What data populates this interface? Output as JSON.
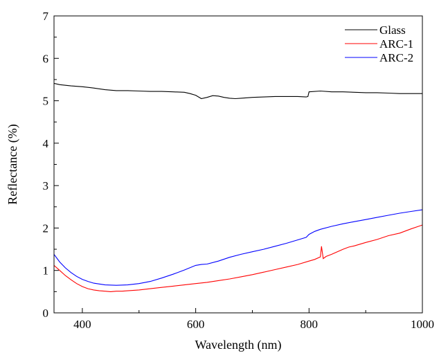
{
  "chart_data": {
    "type": "line",
    "title": "",
    "xlabel": "Wavelength (nm)",
    "ylabel": "Reflectance (%)",
    "xlim": [
      350,
      1000
    ],
    "ylim": [
      0,
      7
    ],
    "xticks": [
      400,
      600,
      800,
      1000
    ],
    "yticks": [
      0,
      1,
      2,
      3,
      4,
      5,
      6,
      7
    ],
    "grid": false,
    "legend_position": "top-right",
    "series": [
      {
        "name": "Glass",
        "color": "#000000",
        "x": [
          350,
          360,
          380,
          400,
          420,
          440,
          460,
          480,
          500,
          520,
          540,
          560,
          580,
          590,
          600,
          610,
          620,
          630,
          640,
          650,
          660,
          670,
          680,
          700,
          720,
          740,
          760,
          780,
          795,
          798,
          800,
          820,
          840,
          860,
          880,
          900,
          920,
          940,
          960,
          980,
          1000
        ],
        "y": [
          5.41,
          5.38,
          5.35,
          5.33,
          5.3,
          5.26,
          5.24,
          5.24,
          5.23,
          5.22,
          5.22,
          5.21,
          5.2,
          5.17,
          5.13,
          5.05,
          5.08,
          5.12,
          5.11,
          5.08,
          5.06,
          5.05,
          5.06,
          5.08,
          5.09,
          5.1,
          5.1,
          5.1,
          5.09,
          5.1,
          5.21,
          5.23,
          5.21,
          5.21,
          5.2,
          5.19,
          5.19,
          5.18,
          5.17,
          5.17,
          5.17
        ]
      },
      {
        "name": "ARC-1",
        "color": "#ff0000",
        "x": [
          350,
          360,
          370,
          380,
          390,
          400,
          410,
          420,
          430,
          440,
          450,
          460,
          470,
          480,
          500,
          520,
          540,
          560,
          580,
          600,
          620,
          640,
          660,
          680,
          700,
          720,
          740,
          760,
          780,
          800,
          810,
          820,
          822,
          825,
          830,
          840,
          850,
          860,
          870,
          880,
          900,
          920,
          940,
          960,
          980,
          1000
        ],
        "y": [
          1.12,
          1.0,
          0.88,
          0.78,
          0.69,
          0.62,
          0.57,
          0.54,
          0.52,
          0.51,
          0.5,
          0.51,
          0.51,
          0.52,
          0.54,
          0.57,
          0.6,
          0.63,
          0.66,
          0.69,
          0.72,
          0.76,
          0.8,
          0.85,
          0.9,
          0.96,
          1.02,
          1.08,
          1.14,
          1.22,
          1.26,
          1.32,
          1.57,
          1.28,
          1.33,
          1.38,
          1.44,
          1.5,
          1.55,
          1.58,
          1.66,
          1.73,
          1.82,
          1.88,
          1.98,
          2.07
        ]
      },
      {
        "name": "ARC-2",
        "color": "#0000ff",
        "x": [
          350,
          360,
          370,
          380,
          390,
          400,
          410,
          420,
          430,
          440,
          460,
          480,
          500,
          520,
          540,
          560,
          580,
          600,
          610,
          620,
          640,
          660,
          680,
          700,
          720,
          740,
          760,
          780,
          795,
          800,
          810,
          820,
          840,
          860,
          880,
          900,
          920,
          940,
          960,
          980,
          1000
        ],
        "y": [
          1.38,
          1.2,
          1.06,
          0.95,
          0.86,
          0.79,
          0.74,
          0.7,
          0.68,
          0.66,
          0.65,
          0.66,
          0.69,
          0.74,
          0.82,
          0.91,
          1.01,
          1.12,
          1.14,
          1.15,
          1.22,
          1.31,
          1.38,
          1.44,
          1.5,
          1.57,
          1.64,
          1.72,
          1.78,
          1.85,
          1.92,
          1.97,
          2.04,
          2.1,
          2.15,
          2.2,
          2.25,
          2.3,
          2.35,
          2.39,
          2.43
        ]
      }
    ]
  }
}
